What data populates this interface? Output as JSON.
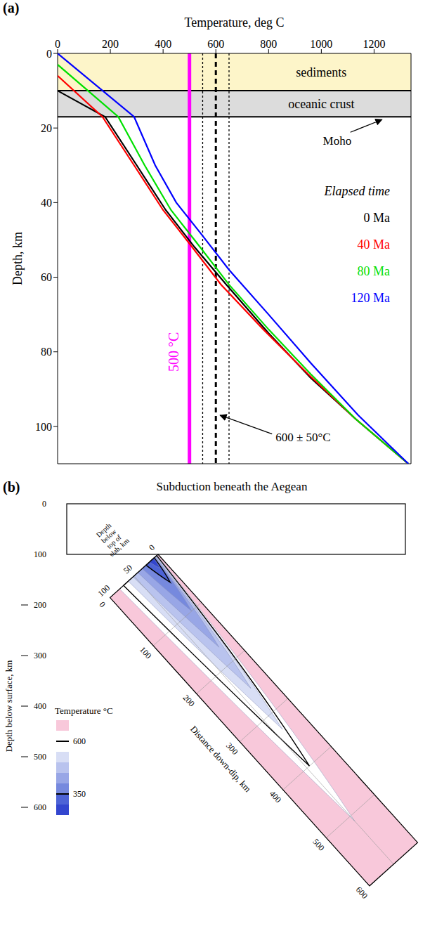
{
  "chart_data": [
    {
      "type": "line",
      "panel_label": "(a)",
      "x_label": "Temperature, deg C",
      "y_label": "Depth, km",
      "xlim": [
        0,
        1340
      ],
      "xticks": [
        0,
        200,
        400,
        600,
        800,
        1000,
        1200
      ],
      "ylim": [
        0,
        110
      ],
      "yticks": [
        0,
        20,
        40,
        60,
        80,
        100
      ],
      "legend": "right",
      "legend_title": "Elapsed time",
      "series": [
        {
          "name": "0 Ma",
          "color": "#000000",
          "x": [
            0,
            180,
            300,
            410,
            520,
            640,
            800,
            960,
            1130,
            1330
          ],
          "values": [
            10,
            17,
            30,
            42,
            52,
            62,
            75,
            87,
            98,
            110
          ]
        },
        {
          "name": "40 Ma",
          "color": "#ff0000",
          "x": [
            0,
            170,
            290,
            400,
            500,
            620,
            780,
            950,
            1130,
            1330
          ],
          "values": [
            6,
            17,
            30,
            42,
            51,
            62,
            74,
            86,
            98,
            110
          ]
        },
        {
          "name": "80 Ma",
          "color": "#00e000",
          "x": [
            0,
            230,
            330,
            430,
            530,
            650,
            800,
            960,
            1130,
            1330
          ],
          "values": [
            3,
            17,
            30,
            42,
            51,
            62,
            74,
            86,
            98,
            110
          ]
        },
        {
          "name": "120 Ma",
          "color": "#0000ff",
          "x": [
            0,
            290,
            370,
            450,
            540,
            650,
            800,
            960,
            1140,
            1330
          ],
          "values": [
            0,
            17,
            30,
            40,
            48,
            58,
            70,
            83,
            97,
            110
          ]
        }
      ],
      "bands": [
        {
          "label": "sediments",
          "from": 0,
          "to": 10,
          "color": "#fdf5c9"
        },
        {
          "label": "oceanic crust",
          "from": 10,
          "to": 17,
          "color": "#dcdcdc"
        }
      ],
      "moho_label": "Moho",
      "reference_lines": [
        {
          "value": 500,
          "label": "500 °C",
          "color": "#ff00ff",
          "line_style": "solid"
        },
        {
          "value": 600,
          "label": "600 ± 50°C",
          "color": "#000000",
          "line_style": "dashed"
        },
        {
          "value": 550,
          "color": "#000000",
          "line_style": "dotted"
        },
        {
          "value": 650,
          "color": "#000000",
          "line_style": "dotted"
        }
      ]
    },
    {
      "type": "diagram",
      "panel_label": "(b)",
      "title": "Subduction beneath the Aegean",
      "depth_label": "Depth below surface, km",
      "depth_lim": [
        0,
        600
      ],
      "depth_ticks": [
        0,
        100,
        200,
        300,
        400,
        500,
        600
      ],
      "plate_thickness": 100,
      "slab_depth_label": "Depth below top of slab, km",
      "slab_depth_lim": [
        0,
        100
      ],
      "slab_depth_ticks": [
        0,
        50,
        100
      ],
      "distance_label": "Distance down-dip, km",
      "distance_lim": [
        0,
        600
      ],
      "distance_ticks": [
        0,
        100,
        200,
        300,
        400,
        500,
        600
      ],
      "slab_color": "#f8c8da",
      "colorbar": {
        "label": "Temperature °C",
        "ticks": [
          600,
          350
        ]
      },
      "isotherms": [
        {
          "temperature": 650,
          "color": "#ffffff",
          "start": [
            2,
            80
          ],
          "tip": [
            510,
            50
          ]
        },
        {
          "temperature": 600,
          "color": "#ffffff",
          "start": [
            3,
            72
          ],
          "tip": [
            400,
            45
          ]
        },
        {
          "temperature": 550,
          "color": "#d8def5",
          "start": [
            4,
            62
          ],
          "tip": [
            330,
            38
          ]
        },
        {
          "temperature": 500,
          "color": "#b9c3ee",
          "start": [
            5,
            52
          ],
          "tip": [
            250,
            32
          ]
        },
        {
          "temperature": 450,
          "color": "#98a6e6",
          "start": [
            6,
            42
          ],
          "tip": [
            170,
            26
          ]
        },
        {
          "temperature": 400,
          "color": "#7689de",
          "start": [
            7,
            33
          ],
          "tip": [
            100,
            20
          ]
        },
        {
          "temperature": 350,
          "color": "#4d63d6",
          "start": [
            8,
            25
          ],
          "tip": [
            45,
            15
          ]
        },
        {
          "temperature": 300,
          "color": "#3346cf",
          "start": [
            9,
            18
          ],
          "tip": [
            18,
            12
          ]
        }
      ]
    }
  ]
}
